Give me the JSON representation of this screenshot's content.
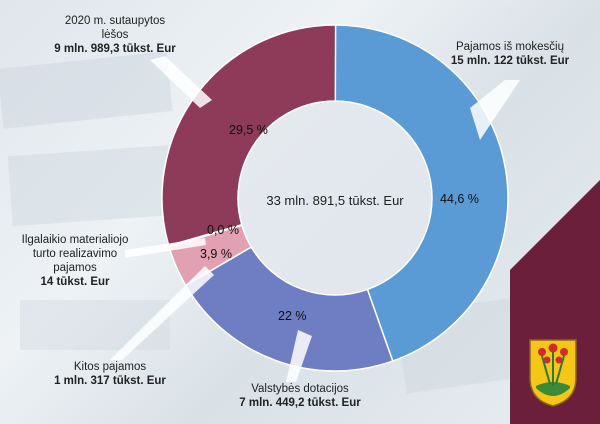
{
  "chart_data": {
    "type": "pie",
    "title": "",
    "total_label": "33 mln. 891,5 tūkst. Eur",
    "slices": [
      {
        "label_line1": "Pajamos iš mokesčių",
        "label_line2": "",
        "label_line3": "",
        "amount": "15 mln. 122 tūkst. Eur",
        "value": 44.6,
        "pct_label": "44,6 %",
        "color": "#5b9bd5"
      },
      {
        "label_line1": "Valstybės dotacijos",
        "label_line2": "",
        "label_line3": "",
        "amount": "7 mln. 449,2 tūkst. Eur",
        "value": 22.0,
        "pct_label": "22 %",
        "color": "#6f7ec2"
      },
      {
        "label_line1": "Kitos pajamos",
        "label_line2": "",
        "label_line3": "",
        "amount": "1 mln. 317 tūkst. Eur",
        "value": 3.9,
        "pct_label": "3,9 %",
        "color": "#e2a1b3"
      },
      {
        "label_line1": "Ilgalaikio materialiojo",
        "label_line2": "turto realizavimo",
        "label_line3": "pajamos",
        "amount": "14 tūkst. Eur",
        "value": 0.04,
        "pct_label": "0,0 %",
        "color": "#e8b4c2"
      },
      {
        "label_line1": "2020 m. sutaupytos",
        "label_line2": "lėšos",
        "label_line3": "",
        "amount": "9 mln. 989,3 tūkst. Eur",
        "value": 29.5,
        "pct_label": "29,5 %",
        "color": "#8e3a59"
      }
    ]
  }
}
